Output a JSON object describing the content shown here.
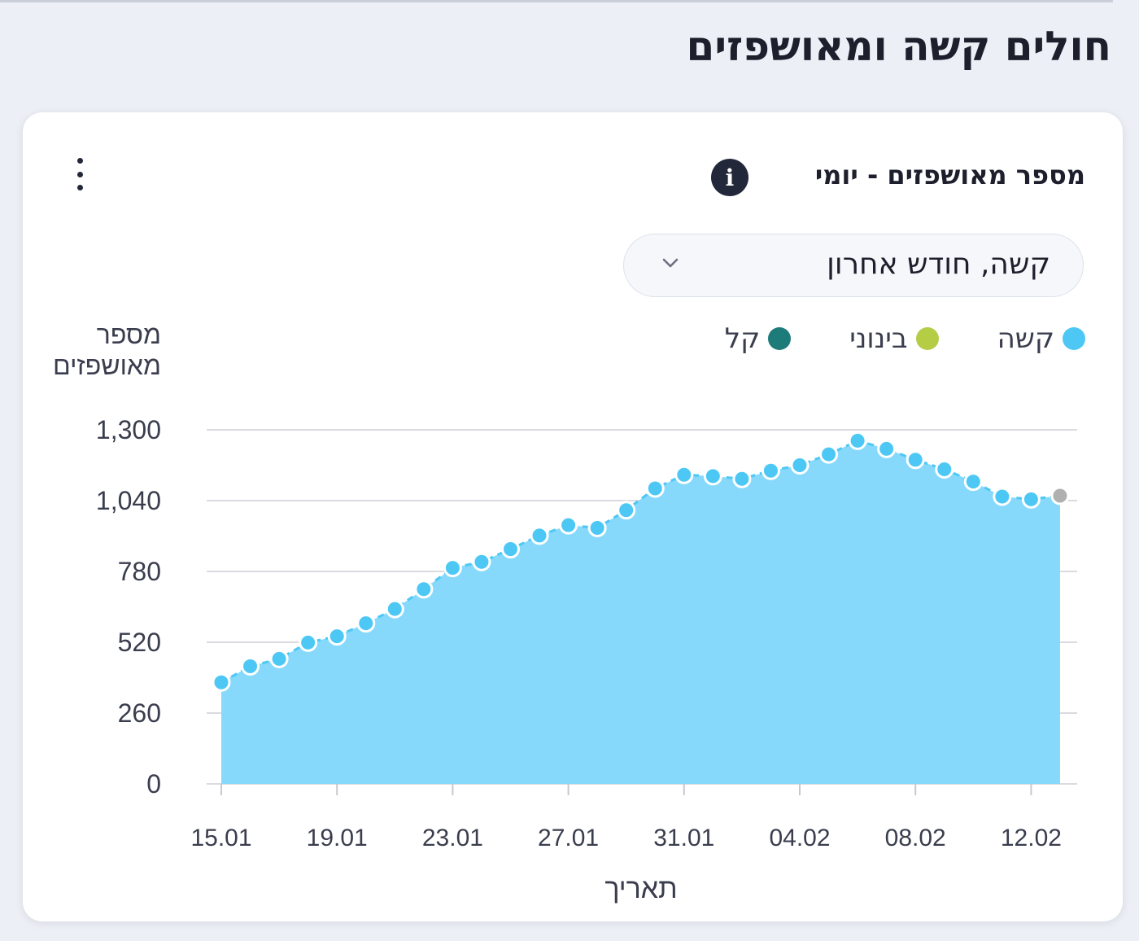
{
  "page": {
    "section_title": "חולים קשה ומאושפזים"
  },
  "card": {
    "title": "מספר מאושפזים - יומי",
    "info_icon": "info-icon",
    "menu_icon": "kebab-menu-icon",
    "dropdown": {
      "value": "קשה, חודש אחרון",
      "icon": "chevron-down-icon"
    },
    "legend": [
      {
        "label": "קשה",
        "color": "#4dc8f5"
      },
      {
        "label": "בינוני",
        "color": "#b5cd45"
      },
      {
        "label": "קל",
        "color": "#1d7b7a"
      }
    ]
  },
  "chart_data": {
    "type": "area",
    "title": "מספר מאושפזים - יומי",
    "ylabel_lines": [
      "מספר",
      "מאושפזים"
    ],
    "xlabel": "תאריך",
    "ylim": [
      0,
      1300
    ],
    "yticks": [
      0,
      260,
      520,
      780,
      1040,
      1300
    ],
    "ytick_labels": [
      "0",
      "260",
      "520",
      "780",
      "1,040",
      "1,300"
    ],
    "xtick_labels": [
      "15.01",
      "19.01",
      "23.01",
      "27.01",
      "31.01",
      "04.02",
      "08.02",
      "12.02"
    ],
    "x_dates": [
      "15.01",
      "16.01",
      "17.01",
      "18.01",
      "19.01",
      "20.01",
      "21.01",
      "22.01",
      "23.01",
      "24.01",
      "25.01",
      "26.01",
      "27.01",
      "28.01",
      "29.01",
      "30.01",
      "31.01",
      "01.02",
      "02.02",
      "03.02",
      "04.02",
      "05.02",
      "06.02",
      "07.02",
      "08.02",
      "09.02",
      "10.02",
      "11.02",
      "12.02",
      "13.02"
    ],
    "series": [
      {
        "name": "קשה",
        "color": "#4dc8f5",
        "fill": "#87d9fc",
        "values": [
          373,
          432,
          459,
          519,
          542,
          590,
          642,
          715,
          793,
          815,
          862,
          912,
          950,
          940,
          1005,
          1085,
          1135,
          1130,
          1120,
          1150,
          1170,
          1210,
          1260,
          1230,
          1190,
          1155,
          1110,
          1055,
          1045,
          1058
        ],
        "last_point_color": "#b0b0b0"
      }
    ],
    "grid": true,
    "legend_position": "top-right"
  }
}
